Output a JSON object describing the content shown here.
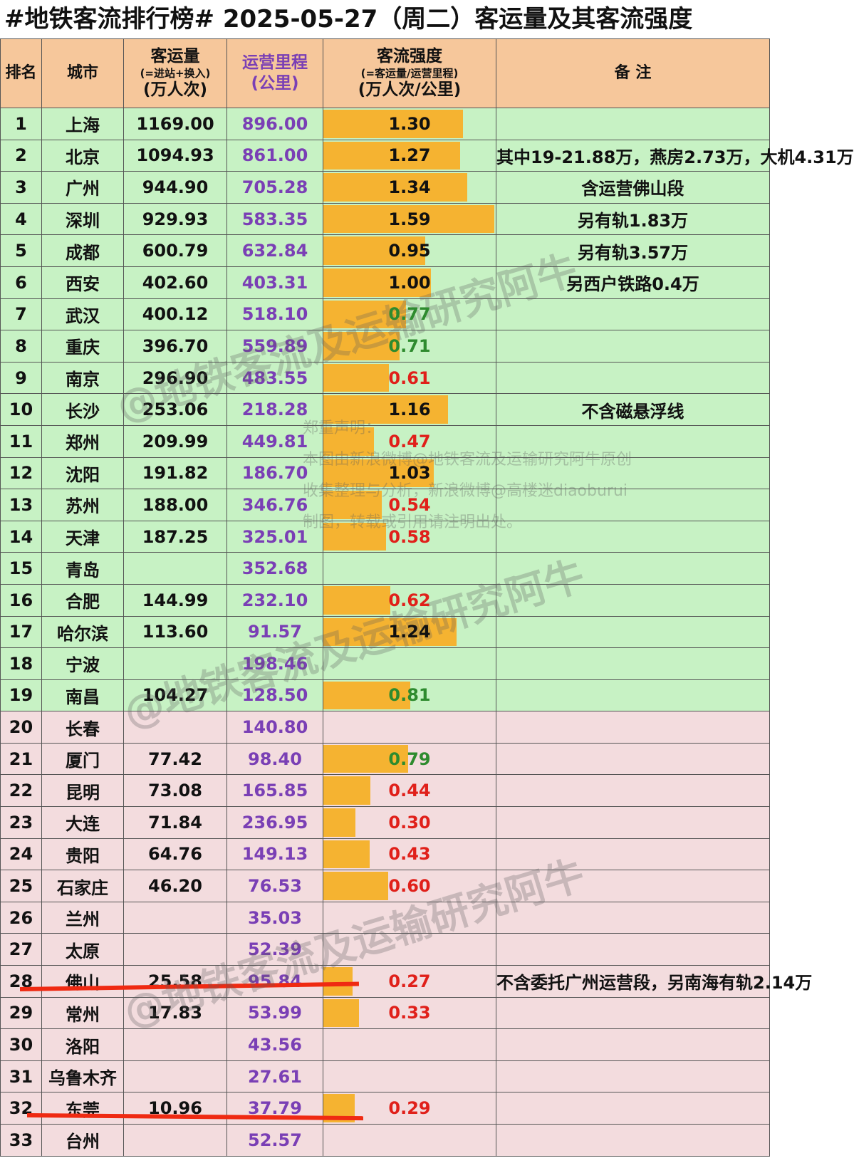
{
  "title": "#地铁客流排行榜# 2025-05-27（周二）客运量及其客流强度",
  "headers": {
    "rank": "排名",
    "city": "城市",
    "ridership_line1": "客运量",
    "ridership_line2": "(=进站+换入)",
    "ridership_line3": "(万人次)",
    "mileage_line1": "运营里程",
    "mileage_line2": "(公里)",
    "intensity_line1": "客流强度",
    "intensity_line2": "(=客运量/运营里程)",
    "intensity_line3": "(万人次/公里)",
    "notes": "备 注"
  },
  "watermarks": {
    "handle": "@地铁客流及运输研究阿牛",
    "statement_line1": "郑重声明：",
    "statement_line2": "本图由新浪微博@地铁客流及运输研究阿牛原创",
    "statement_line3": "收集整理与分析，新浪微博@高楼迷diaoburui",
    "statement_line4": "制图，转载或引用请注明出处。"
  },
  "colors": {
    "header_bg": "#f6c79b",
    "green_row_bg": "#c7f2c4",
    "pink_row_bg": "#f3dcde",
    "bar": "#f5b331",
    "mileage_text": "#7a3fb5",
    "low_intensity_text": "#e0201a",
    "mid_intensity_text": "#2e8b2e",
    "highlight_line": "#ef2a12"
  },
  "chart_data": {
    "type": "table",
    "columns": [
      "排名",
      "城市",
      "客运量(万人次)",
      "运营里程(公里)",
      "客流强度(万人次/公里)",
      "备注"
    ],
    "intensity_bar_max": 1.59,
    "rows": [
      {
        "rank": "1",
        "city": "上海",
        "ridership": "1169.00",
        "mileage": "896.00",
        "intensity": "1.30",
        "value": 1.3,
        "color": "black",
        "note": "",
        "group": "g"
      },
      {
        "rank": "2",
        "city": "北京",
        "ridership": "1094.93",
        "mileage": "861.00",
        "intensity": "1.27",
        "value": 1.27,
        "color": "black",
        "note": "其中19-21.88万，燕房2.73万，大机4.31万",
        "group": "g"
      },
      {
        "rank": "3",
        "city": "广州",
        "ridership": "944.90",
        "mileage": "705.28",
        "intensity": "1.34",
        "value": 1.34,
        "color": "black",
        "note": "含运营佛山段",
        "group": "g"
      },
      {
        "rank": "4",
        "city": "深圳",
        "ridership": "929.93",
        "mileage": "583.35",
        "intensity": "1.59",
        "value": 1.59,
        "color": "black",
        "note": "另有轨1.83万",
        "group": "g"
      },
      {
        "rank": "5",
        "city": "成都",
        "ridership": "600.79",
        "mileage": "632.84",
        "intensity": "0.95",
        "value": 0.95,
        "color": "black",
        "note": "另有轨3.57万",
        "group": "g"
      },
      {
        "rank": "6",
        "city": "西安",
        "ridership": "402.60",
        "mileage": "403.31",
        "intensity": "1.00",
        "value": 1.0,
        "color": "black",
        "note": "另西户铁路0.4万",
        "group": "g"
      },
      {
        "rank": "7",
        "city": "武汉",
        "ridership": "400.12",
        "mileage": "518.10",
        "intensity": "0.77",
        "value": 0.77,
        "color": "green",
        "note": "",
        "group": "g"
      },
      {
        "rank": "8",
        "city": "重庆",
        "ridership": "396.70",
        "mileage": "559.89",
        "intensity": "0.71",
        "value": 0.71,
        "color": "green",
        "note": "",
        "group": "g"
      },
      {
        "rank": "9",
        "city": "南京",
        "ridership": "296.90",
        "mileage": "483.55",
        "intensity": "0.61",
        "value": 0.61,
        "color": "red",
        "note": "",
        "group": "g"
      },
      {
        "rank": "10",
        "city": "长沙",
        "ridership": "253.06",
        "mileage": "218.28",
        "intensity": "1.16",
        "value": 1.16,
        "color": "black",
        "note": "不含磁悬浮线",
        "group": "g"
      },
      {
        "rank": "11",
        "city": "郑州",
        "ridership": "209.99",
        "mileage": "449.81",
        "intensity": "0.47",
        "value": 0.47,
        "color": "red",
        "note": "",
        "group": "g"
      },
      {
        "rank": "12",
        "city": "沈阳",
        "ridership": "191.82",
        "mileage": "186.70",
        "intensity": "1.03",
        "value": 1.03,
        "color": "black",
        "note": "",
        "group": "g"
      },
      {
        "rank": "13",
        "city": "苏州",
        "ridership": "188.00",
        "mileage": "346.76",
        "intensity": "0.54",
        "value": 0.54,
        "color": "red",
        "note": "",
        "group": "g"
      },
      {
        "rank": "14",
        "city": "天津",
        "ridership": "187.25",
        "mileage": "325.01",
        "intensity": "0.58",
        "value": 0.58,
        "color": "red",
        "note": "",
        "group": "g"
      },
      {
        "rank": "15",
        "city": "青岛",
        "ridership": "",
        "mileage": "352.68",
        "intensity": "",
        "value": 0,
        "color": "black",
        "note": "",
        "group": "g"
      },
      {
        "rank": "16",
        "city": "合肥",
        "ridership": "144.99",
        "mileage": "232.10",
        "intensity": "0.62",
        "value": 0.62,
        "color": "red",
        "note": "",
        "group": "g"
      },
      {
        "rank": "17",
        "city": "哈尔滨",
        "ridership": "113.60",
        "mileage": "91.57",
        "intensity": "1.24",
        "value": 1.24,
        "color": "black",
        "note": "",
        "group": "g"
      },
      {
        "rank": "18",
        "city": "宁波",
        "ridership": "",
        "mileage": "198.46",
        "intensity": "",
        "value": 0,
        "color": "black",
        "note": "",
        "group": "g"
      },
      {
        "rank": "19",
        "city": "南昌",
        "ridership": "104.27",
        "mileage": "128.50",
        "intensity": "0.81",
        "value": 0.81,
        "color": "green",
        "note": "",
        "group": "g"
      },
      {
        "rank": "20",
        "city": "长春",
        "ridership": "",
        "mileage": "140.80",
        "intensity": "",
        "value": 0,
        "color": "black",
        "note": "",
        "group": "p"
      },
      {
        "rank": "21",
        "city": "厦门",
        "ridership": "77.42",
        "mileage": "98.40",
        "intensity": "0.79",
        "value": 0.79,
        "color": "green",
        "note": "",
        "group": "p"
      },
      {
        "rank": "22",
        "city": "昆明",
        "ridership": "73.08",
        "mileage": "165.85",
        "intensity": "0.44",
        "value": 0.44,
        "color": "red",
        "note": "",
        "group": "p"
      },
      {
        "rank": "23",
        "city": "大连",
        "ridership": "71.84",
        "mileage": "236.95",
        "intensity": "0.30",
        "value": 0.3,
        "color": "red",
        "note": "",
        "group": "p"
      },
      {
        "rank": "24",
        "city": "贵阳",
        "ridership": "64.76",
        "mileage": "149.13",
        "intensity": "0.43",
        "value": 0.43,
        "color": "red",
        "note": "",
        "group": "p"
      },
      {
        "rank": "25",
        "city": "石家庄",
        "ridership": "46.20",
        "mileage": "76.53",
        "intensity": "0.60",
        "value": 0.6,
        "color": "red",
        "note": "",
        "group": "p"
      },
      {
        "rank": "26",
        "city": "兰州",
        "ridership": "",
        "mileage": "35.03",
        "intensity": "",
        "value": 0,
        "color": "black",
        "note": "",
        "group": "p"
      },
      {
        "rank": "27",
        "city": "太原",
        "ridership": "",
        "mileage": "52.39",
        "intensity": "",
        "value": 0,
        "color": "black",
        "note": "",
        "group": "p"
      },
      {
        "rank": "28",
        "city": "佛山",
        "ridership": "25.58",
        "mileage": "95.84",
        "intensity": "0.27",
        "value": 0.27,
        "color": "red",
        "note": "不含委托广州运营段，另南海有轨2.14万",
        "group": "p"
      },
      {
        "rank": "29",
        "city": "常州",
        "ridership": "17.83",
        "mileage": "53.99",
        "intensity": "0.33",
        "value": 0.33,
        "color": "red",
        "note": "",
        "group": "p"
      },
      {
        "rank": "30",
        "city": "洛阳",
        "ridership": "",
        "mileage": "43.56",
        "intensity": "",
        "value": 0,
        "color": "black",
        "note": "",
        "group": "p"
      },
      {
        "rank": "31",
        "city": "乌鲁木齐",
        "ridership": "",
        "mileage": "27.61",
        "intensity": "",
        "value": 0,
        "color": "black",
        "note": "",
        "group": "p"
      },
      {
        "rank": "32",
        "city": "东莞",
        "ridership": "10.96",
        "mileage": "37.79",
        "intensity": "0.29",
        "value": 0.29,
        "color": "red",
        "note": "",
        "group": "p"
      },
      {
        "rank": "33",
        "city": "台州",
        "ridership": "",
        "mileage": "52.57",
        "intensity": "",
        "value": 0,
        "color": "black",
        "note": "",
        "group": "p"
      }
    ]
  }
}
